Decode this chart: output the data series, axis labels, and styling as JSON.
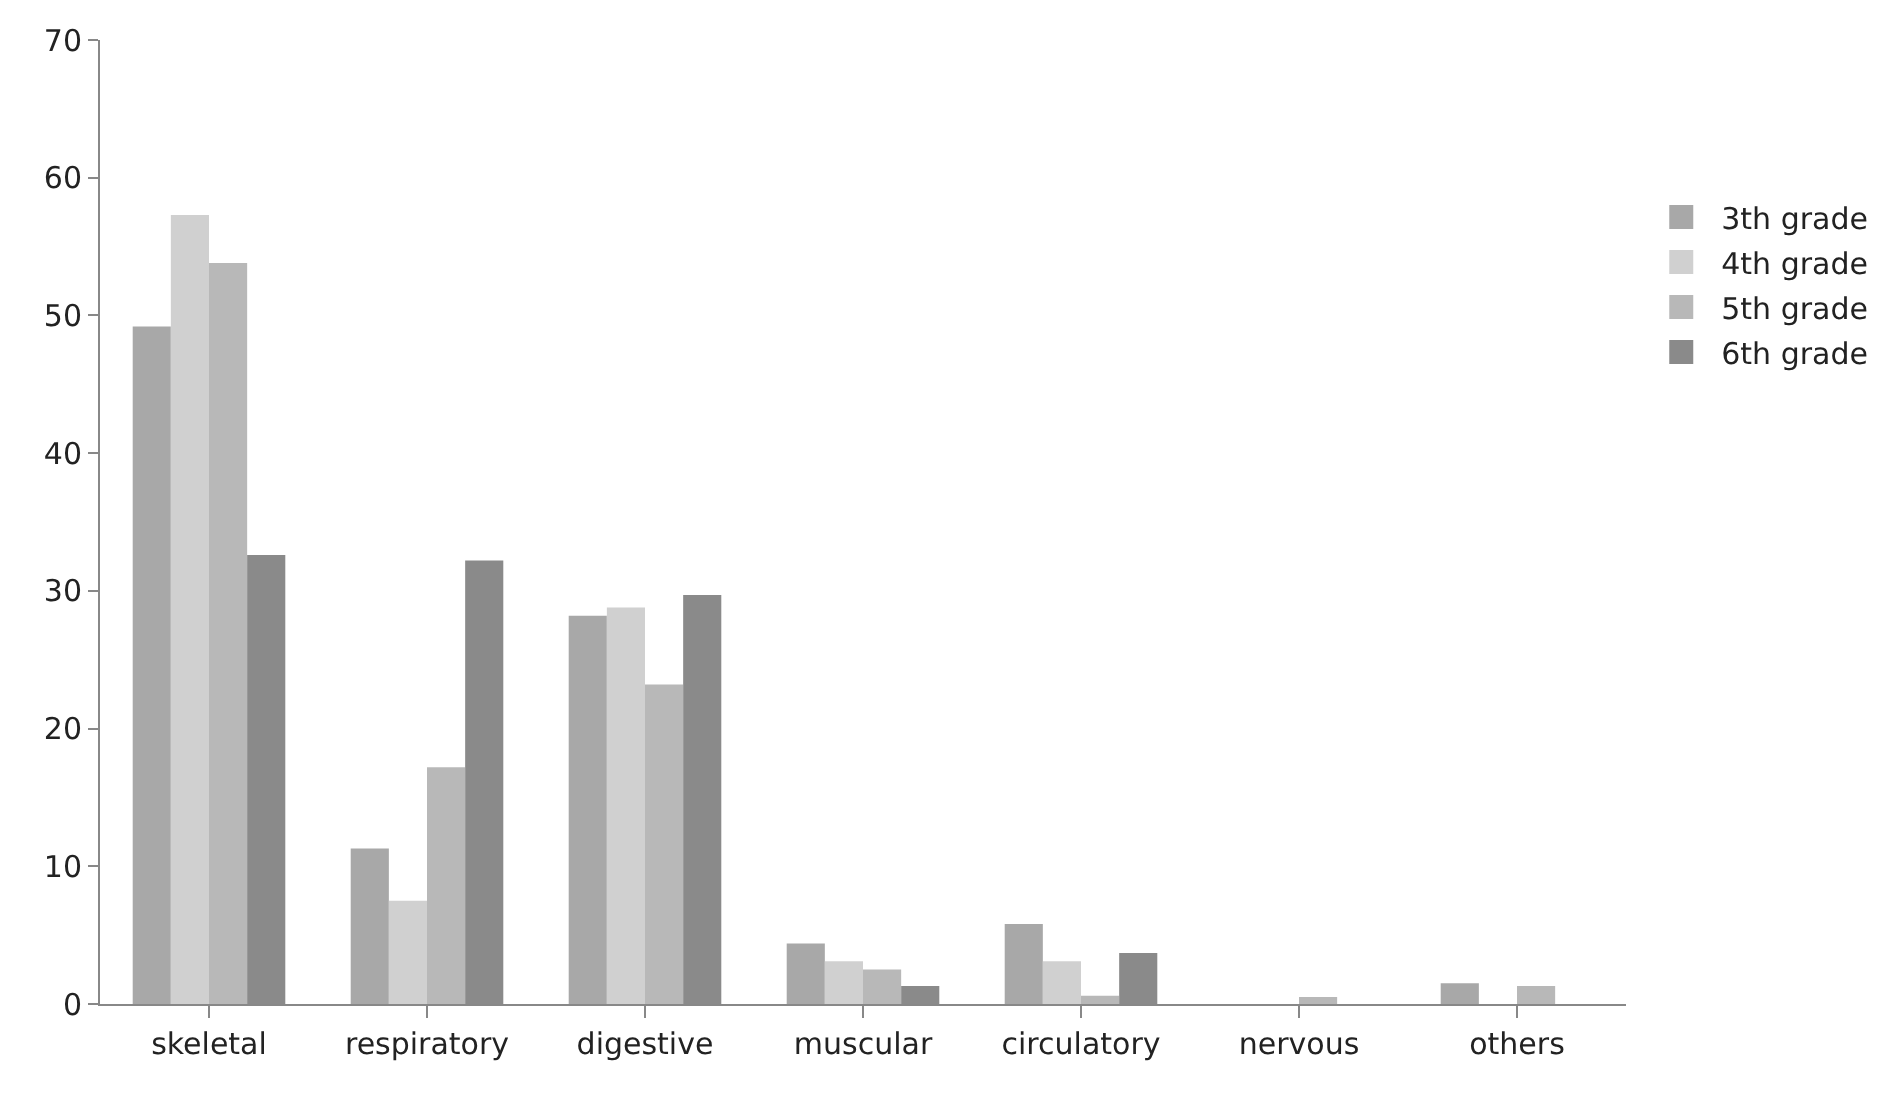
{
  "chart_data": {
    "type": "bar",
    "categories": [
      "skeletal",
      "respiratory",
      "digestive",
      "muscular",
      "circulatory",
      "nervous",
      "others"
    ],
    "series": [
      {
        "name": "3th grade",
        "color": "#a8a8a8",
        "values": [
          49.2,
          11.3,
          28.2,
          4.4,
          5.8,
          0,
          1.5
        ]
      },
      {
        "name": "4th grade",
        "color": "#d0d0d0",
        "values": [
          57.3,
          7.5,
          28.8,
          3.1,
          3.1,
          0,
          0
        ]
      },
      {
        "name": "5th grade",
        "color": "#b8b8b8",
        "values": [
          53.8,
          17.2,
          23.2,
          2.5,
          0.6,
          0.5,
          1.3
        ]
      },
      {
        "name": "6th grade",
        "color": "#8a8a8a",
        "values": [
          32.6,
          32.2,
          29.7,
          1.3,
          3.7,
          0,
          0
        ]
      }
    ],
    "ylim": [
      0,
      70
    ],
    "yticks": [
      0,
      10,
      20,
      30,
      40,
      50,
      60,
      70
    ],
    "grid": false,
    "legend": "right"
  }
}
